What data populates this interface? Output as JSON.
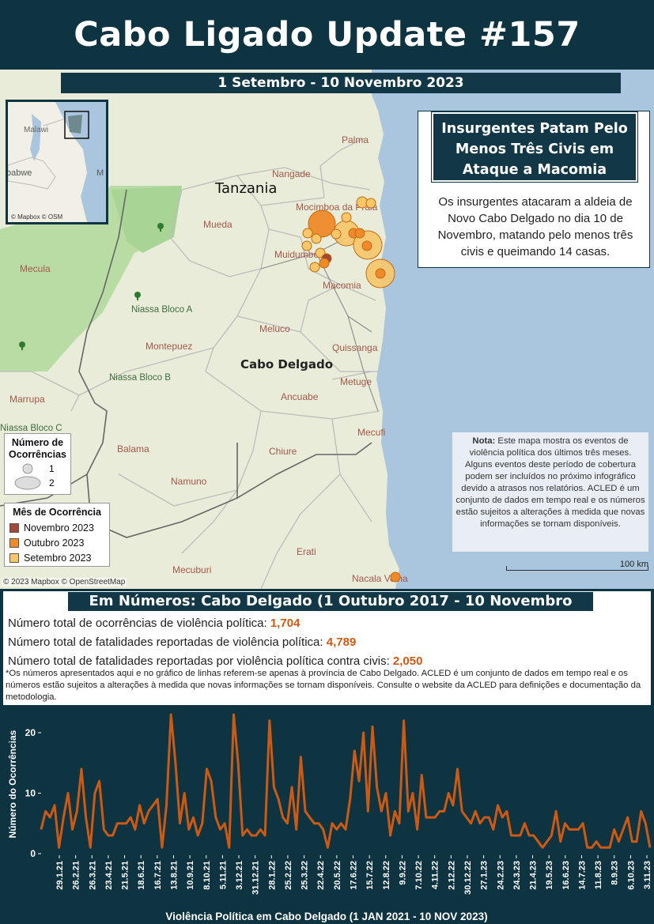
{
  "title": "Cabo Ligado Update #157",
  "period": "1 Setembro - 10 Novembro 2023",
  "map": {
    "countries": {
      "tanzania": "Tanzania"
    },
    "region": "Cabo Delgado",
    "districts": [
      {
        "name": "Palma"
      },
      {
        "name": "Nangade"
      },
      {
        "name": "Mocimboa da Praia"
      },
      {
        "name": "Mueda"
      },
      {
        "name": "Muidumbe"
      },
      {
        "name": "Macomia"
      },
      {
        "name": "Mecula"
      },
      {
        "name": "Meluco"
      },
      {
        "name": "Montepuez"
      },
      {
        "name": "Quissanga"
      },
      {
        "name": "Metuge"
      },
      {
        "name": "Ancuabe"
      },
      {
        "name": "Marrupa"
      },
      {
        "name": "Balama"
      },
      {
        "name": "Chiure"
      },
      {
        "name": "Mecufi"
      },
      {
        "name": "Namuno"
      },
      {
        "name": "Erati"
      },
      {
        "name": "Mecuburi"
      },
      {
        "name": "Nacala Velha"
      }
    ],
    "reserves": [
      "Niassa Bloco A",
      "Niassa Bloco B",
      "Niassa Bloco C"
    ],
    "inset": {
      "labels": [
        "Malawi",
        "babwe",
        "M"
      ],
      "credit": "© Mapbox © OSM"
    },
    "credit": "© 2023 Mapbox © OpenStreetMap",
    "scale_label": "100 km"
  },
  "callout": {
    "title": "Insurgentes Patam Pelo Menos Três Civis em Ataque a Macomia",
    "body": "Os insurgentes atacaram a aldeia de Novo Cabo Delgado no dia 10 de Novembro, matando pelo menos três civis e queimando 14 casas."
  },
  "note": {
    "label": "Nota:",
    "text": "Este mapa mostra os eventos de violência política dos últimos três meses. Alguns eventos deste período de cobertura podem ser incluídos no próximo infográfico devido a atrasos nos relatórios. ACLED é um conjunto de dados em tempo real e os números estão sujeitos a alterações à medida que novas informações se tornam disponíveis."
  },
  "legend_count": {
    "title": "Número de Ocorrências",
    "items": [
      "1",
      "2"
    ]
  },
  "legend_month": {
    "title": "Mês de Ocorrência",
    "items": [
      {
        "label": "Novembro 2023",
        "color": "#a0473a"
      },
      {
        "label": "Outubro 2023",
        "color": "#ee8a2a"
      },
      {
        "label": "Setembro 2023",
        "color": "#f7c76a"
      }
    ]
  },
  "numbers": {
    "title": "Em Números: Cabo Delgado (1 Outubro 2017 - 10 Novembro 2023)",
    "stats": [
      {
        "label": "Número total de ocorrências de violência política: ",
        "value": "1,704"
      },
      {
        "label": "Número total de fatalidades reportadas de violência política: ",
        "value": "4,789"
      },
      {
        "label": "Número total de fatalidades reportadas por violência política contra civis: ",
        "value": "2,050"
      }
    ],
    "footnote": "*Os números apresentados aqui e no gráfico de linhas referem-se apenas à província de Cabo Delgado. ACLED é um conjunto de dados em tempo real e os números estão sujeitos a alterações à medida que novas informações se tornam disponíveis. Consulte o website da ACLED para definições e documentação da metodologia."
  },
  "colors": {
    "navy": "#0e3341",
    "line": "#cc5a14",
    "sea": "#a9c6de"
  },
  "chart_data": {
    "type": "line",
    "title": "",
    "xlabel": "Violência Política em Cabo Delgado (1 JAN 2021 - 10 NOV 2023)",
    "ylabel": "Número do Ocorrências",
    "ylim": [
      0,
      23
    ],
    "yticks": [
      0,
      10,
      20
    ],
    "x_tick_labels": [
      "29.1.21",
      "26.2.21",
      "26.3.21",
      "23.4.21",
      "21.5.21",
      "18.6.21",
      "16.7.21",
      "13.8.21",
      "10.9.21",
      "8.10.21",
      "5.11.21",
      "3.12.21",
      "31.12.21",
      "28.1.22",
      "25.2.22",
      "25.3.22",
      "22.4.22",
      "20.5.22",
      "17.6.22",
      "15.7.22",
      "12.8.22",
      "9.9.22",
      "7.10.22",
      "4.11.22",
      "2.12.22",
      "30.12.22",
      "27.1.23",
      "24.2.23",
      "24.3.23",
      "21.4.23",
      "19.5.23",
      "16.6.23",
      "14.7.23",
      "11.8.23",
      "8.9.23",
      "6.10.23",
      "3.11.23"
    ],
    "values": [
      4,
      7,
      6,
      8,
      1,
      6,
      10,
      4,
      7,
      14,
      6,
      1,
      10,
      12,
      4,
      3,
      3,
      5,
      5,
      5,
      6,
      4,
      8,
      5,
      7,
      8,
      9,
      1,
      8,
      23,
      15,
      5,
      10,
      4,
      6,
      3,
      5,
      14,
      12,
      6,
      4,
      5,
      1,
      23,
      15,
      3,
      4,
      3,
      3,
      4,
      3,
      22,
      11,
      9,
      6,
      5,
      11,
      4,
      16,
      7,
      6,
      5,
      5,
      4,
      1,
      5,
      4,
      5,
      4,
      9,
      17,
      12,
      20,
      7,
      21,
      11,
      7,
      10,
      3,
      7,
      5,
      22,
      7,
      10,
      4,
      13,
      6,
      6,
      6,
      7,
      7,
      10,
      8,
      14,
      7,
      6,
      5,
      7,
      5,
      6,
      6,
      4,
      8,
      6,
      7,
      3,
      3,
      3,
      5,
      3,
      3,
      2,
      1,
      2,
      3,
      7,
      2,
      5,
      4,
      4,
      4,
      5,
      1,
      1,
      2,
      1,
      1,
      1,
      4,
      2,
      4,
      6,
      2,
      2,
      7,
      5,
      1
    ]
  }
}
